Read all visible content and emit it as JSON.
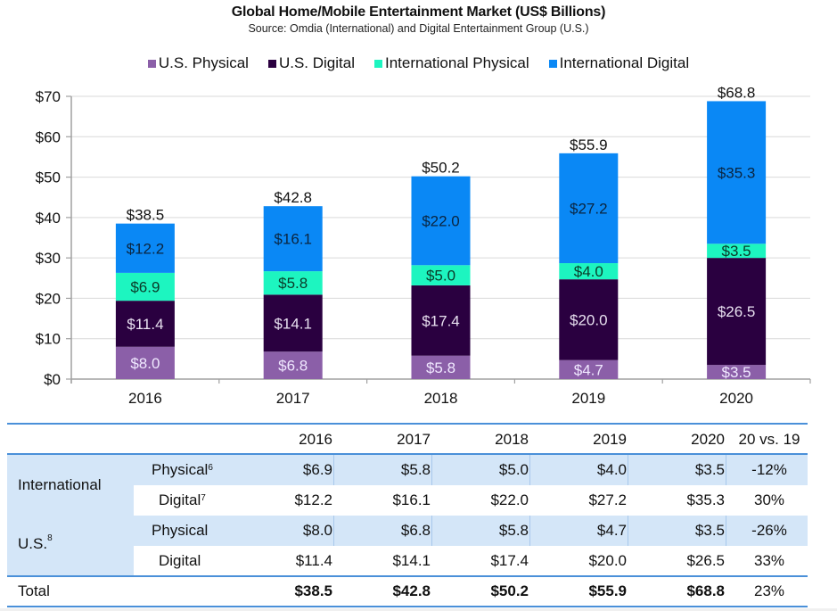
{
  "chart_data": {
    "type": "bar",
    "stacked": true,
    "title": "Global Home/Mobile Entertainment Market (US$ Billions)",
    "subtitle": "Source: Omdia (International) and Digital Entertainment Group (U.S.)",
    "xlabel": "",
    "ylabel": "",
    "categories": [
      "2016",
      "2017",
      "2018",
      "2019",
      "2020"
    ],
    "ylim": [
      0,
      70
    ],
    "yticks": [
      0,
      10,
      20,
      30,
      40,
      50,
      60,
      70
    ],
    "ytick_labels": [
      "$0",
      "$10",
      "$20",
      "$30",
      "$40",
      "$50",
      "$60",
      "$70"
    ],
    "grid": true,
    "legend_position": "top-center",
    "series": [
      {
        "name": "U.S. Physical",
        "color": "#8b5fa8",
        "label_color": "#f0e8ff",
        "values": [
          8.0,
          6.8,
          5.8,
          4.7,
          3.5
        ],
        "labels": [
          "$8.0",
          "$6.8",
          "$5.8",
          "$4.7",
          "$3.5"
        ]
      },
      {
        "name": "U.S. Digital",
        "color": "#2a0040",
        "label_color": "#e8e0f0",
        "values": [
          11.4,
          14.1,
          17.4,
          20.0,
          26.5
        ],
        "labels": [
          "$11.4",
          "$14.1",
          "$17.4",
          "$20.0",
          "$26.5"
        ]
      },
      {
        "name": "International Physical",
        "color": "#1df5c0",
        "label_color": "#0a3a28",
        "values": [
          6.9,
          5.8,
          5.0,
          4.0,
          3.5
        ],
        "labels": [
          "$6.9",
          "$5.8",
          "$5.0",
          "$4.0",
          "$3.5"
        ]
      },
      {
        "name": "International Digital",
        "color": "#0a88f5",
        "label_color": "#0a2540",
        "values": [
          12.2,
          16.1,
          22.0,
          27.2,
          35.3
        ],
        "labels": [
          "$12.2",
          "$16.1",
          "$22.0",
          "$27.2",
          "$35.3"
        ]
      }
    ],
    "totals": [
      38.5,
      42.8,
      50.2,
      55.9,
      68.8
    ],
    "total_labels": [
      "$38.5",
      "$42.8",
      "$50.2",
      "$55.9",
      "$68.8"
    ]
  },
  "table": {
    "headers": [
      "2016",
      "2017",
      "2018",
      "2019",
      "2020",
      "20 vs. 19"
    ],
    "groups": [
      {
        "label": "International",
        "sup": ""
      },
      {
        "label": "U.S.",
        "sup": "8"
      }
    ],
    "rows": [
      {
        "label": "Physical",
        "sup": "6",
        "values": [
          "$6.9",
          "$5.8",
          "$5.0",
          "$4.0",
          "$3.5"
        ],
        "change": "-12%"
      },
      {
        "label": "Digital",
        "sup": "7",
        "values": [
          "$12.2",
          "$16.1",
          "$22.0",
          "$27.2",
          "$35.3"
        ],
        "change": "30%"
      },
      {
        "label": "Physical",
        "sup": "",
        "values": [
          "$8.0",
          "$6.8",
          "$5.8",
          "$4.7",
          "$3.5"
        ],
        "change": "-26%"
      },
      {
        "label": "Digital",
        "sup": "",
        "values": [
          "$11.4",
          "$14.1",
          "$17.4",
          "$20.0",
          "$26.5"
        ],
        "change": "33%"
      }
    ],
    "total": {
      "label": "Total",
      "values": [
        "$38.5",
        "$42.8",
        "$50.2",
        "$55.9",
        "$68.8"
      ],
      "change": "23%"
    }
  }
}
